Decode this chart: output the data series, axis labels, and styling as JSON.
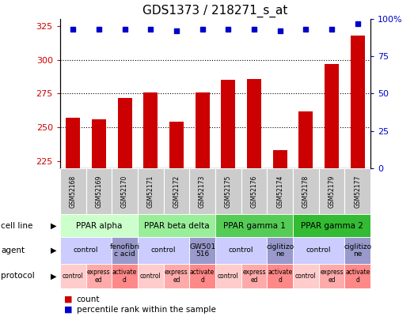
{
  "title": "GDS1373 / 218271_s_at",
  "samples": [
    "GSM52168",
    "GSM52169",
    "GSM52170",
    "GSM52171",
    "GSM52172",
    "GSM52173",
    "GSM52175",
    "GSM52176",
    "GSM52174",
    "GSM52178",
    "GSM52179",
    "GSM52177"
  ],
  "counts": [
    257,
    256,
    272,
    276,
    254,
    276,
    285,
    286,
    233,
    262,
    297,
    318
  ],
  "percentile_ranks": [
    93,
    93,
    93,
    93,
    92,
    93,
    93,
    93,
    92,
    93,
    93,
    97
  ],
  "ylim": [
    220,
    330
  ],
  "yticks": [
    225,
    250,
    275,
    300,
    325
  ],
  "y2ticks": [
    0,
    25,
    50,
    75,
    100
  ],
  "y2labels": [
    "0",
    "25",
    "50",
    "75",
    "100%"
  ],
  "bar_color": "#cc0000",
  "dot_color": "#0000cc",
  "bg_color": "#ffffff",
  "xlab_bg": "#cccccc",
  "cell_line_groups": [
    {
      "label": "PPAR alpha",
      "start": 0,
      "end": 3,
      "color": "#ccffcc"
    },
    {
      "label": "PPAR beta delta",
      "start": 3,
      "end": 6,
      "color": "#99ee99"
    },
    {
      "label": "PPAR gamma 1",
      "start": 6,
      "end": 9,
      "color": "#55cc55"
    },
    {
      "label": "PPAR gamma 2",
      "start": 9,
      "end": 12,
      "color": "#33bb33"
    }
  ],
  "agent_groups": [
    {
      "label": "control",
      "start": 0,
      "end": 2,
      "color": "#ccccff"
    },
    {
      "label": "fenofibri\nc acid",
      "start": 2,
      "end": 3,
      "color": "#9999cc"
    },
    {
      "label": "control",
      "start": 3,
      "end": 5,
      "color": "#ccccff"
    },
    {
      "label": "GW501\n516",
      "start": 5,
      "end": 6,
      "color": "#9999cc"
    },
    {
      "label": "control",
      "start": 6,
      "end": 8,
      "color": "#ccccff"
    },
    {
      "label": "ciglitizo\nne",
      "start": 8,
      "end": 9,
      "color": "#9999cc"
    },
    {
      "label": "control",
      "start": 9,
      "end": 11,
      "color": "#ccccff"
    },
    {
      "label": "ciglitizo\nne",
      "start": 11,
      "end": 12,
      "color": "#9999cc"
    }
  ],
  "protocol_groups": [
    {
      "label": "control",
      "start": 0,
      "end": 1,
      "color": "#ffcccc"
    },
    {
      "label": "express\ned",
      "start": 1,
      "end": 2,
      "color": "#ffaaaa"
    },
    {
      "label": "activate\nd",
      "start": 2,
      "end": 3,
      "color": "#ff8888"
    },
    {
      "label": "control",
      "start": 3,
      "end": 4,
      "color": "#ffcccc"
    },
    {
      "label": "express\ned",
      "start": 4,
      "end": 5,
      "color": "#ffaaaa"
    },
    {
      "label": "activate\nd",
      "start": 5,
      "end": 6,
      "color": "#ff8888"
    },
    {
      "label": "control",
      "start": 6,
      "end": 7,
      "color": "#ffcccc"
    },
    {
      "label": "express\ned",
      "start": 7,
      "end": 8,
      "color": "#ffaaaa"
    },
    {
      "label": "activate\nd",
      "start": 8,
      "end": 9,
      "color": "#ff8888"
    },
    {
      "label": "control",
      "start": 9,
      "end": 10,
      "color": "#ffcccc"
    },
    {
      "label": "express\ned",
      "start": 10,
      "end": 11,
      "color": "#ffaaaa"
    },
    {
      "label": "activate\nd",
      "start": 11,
      "end": 12,
      "color": "#ff8888"
    }
  ],
  "row_labels": [
    "cell line",
    "agent",
    "protocol"
  ],
  "n": 12
}
